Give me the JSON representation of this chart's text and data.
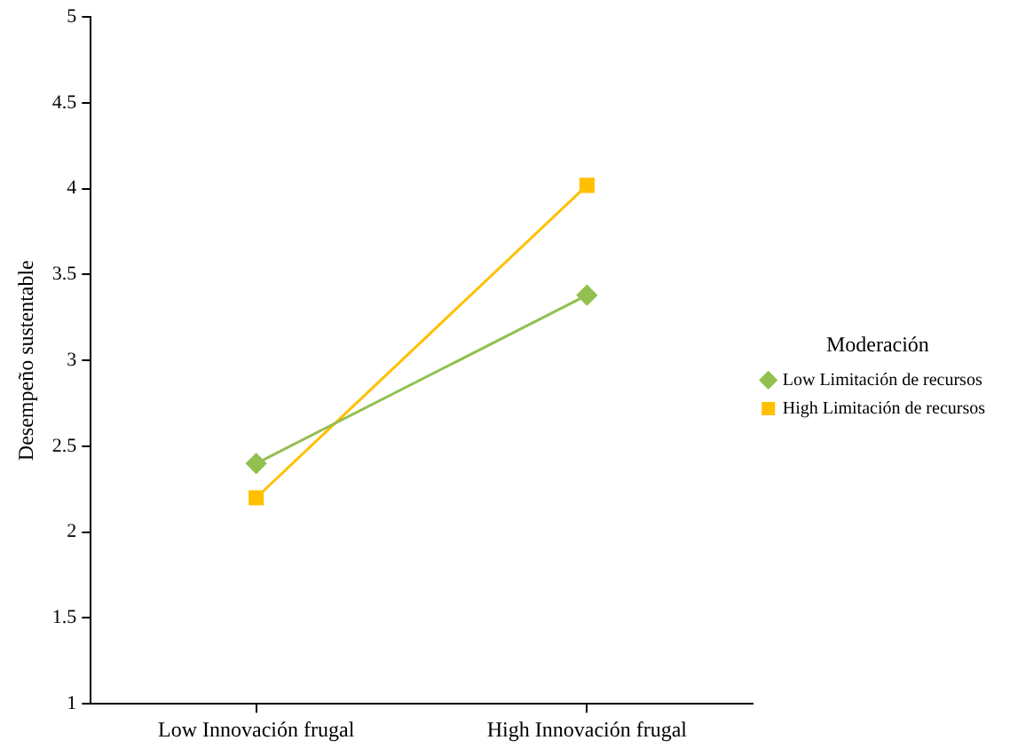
{
  "chart_data": {
    "type": "line",
    "ylabel": "Desempeño sustentable",
    "legend_title": "Moderación",
    "categories": [
      "Low Innovación frugal",
      "High Innovación frugal"
    ],
    "series": [
      {
        "name": "Low Limitación de recursos",
        "color": "#92c050",
        "values": [
          2.4,
          3.38
        ],
        "marker": "diamond"
      },
      {
        "name": "High Limitación de recursos",
        "color": "#ffc000",
        "values": [
          2.2,
          4.02
        ],
        "marker": "square"
      }
    ],
    "ylim": [
      1,
      5
    ],
    "yticks": [
      1,
      1.5,
      2,
      2.5,
      3,
      3.5,
      4,
      4.5,
      5
    ],
    "grid": false,
    "legend": "right",
    "line_style": "solid"
  }
}
